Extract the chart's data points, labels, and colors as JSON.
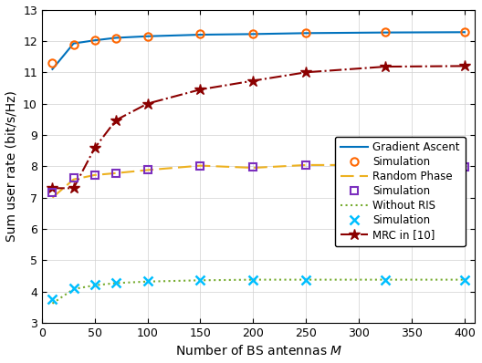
{
  "M_values": [
    10,
    30,
    50,
    70,
    100,
    150,
    200,
    250,
    325,
    400
  ],
  "gradient_ascent": [
    11.1,
    11.92,
    12.02,
    12.1,
    12.15,
    12.2,
    12.22,
    12.25,
    12.27,
    12.28
  ],
  "simulation_ga": [
    11.3,
    11.88,
    12.02,
    12.08,
    12.15,
    12.22,
    12.23,
    12.26,
    12.28,
    12.28
  ],
  "random_phase": [
    7.0,
    7.58,
    7.72,
    7.78,
    7.88,
    8.02,
    7.95,
    8.04,
    8.04,
    7.95
  ],
  "simulation_rp": [
    7.15,
    7.62,
    7.73,
    7.79,
    7.88,
    8.02,
    7.97,
    8.04,
    8.04,
    7.97
  ],
  "without_ris": [
    3.62,
    4.08,
    4.2,
    4.27,
    4.32,
    4.36,
    4.38,
    4.38,
    4.38,
    4.38
  ],
  "simulation_wr": [
    3.75,
    4.12,
    4.22,
    4.29,
    4.34,
    4.37,
    4.38,
    4.38,
    4.38,
    4.38
  ],
  "mrc": [
    7.3,
    7.3,
    8.58,
    9.47,
    10.0,
    10.45,
    10.73,
    11.0,
    11.18,
    11.2
  ],
  "ga_color": "#0072BD",
  "rp_color": "#EDB120",
  "wr_color": "#77AC30",
  "mrc_color": "#8B0000",
  "sim_ga_color": "#FF6600",
  "sim_rp_color": "#7B2FBE",
  "sim_wr_color": "#00BFFF",
  "xlabel": "Number of BS antennas $M$",
  "ylabel": "Sum user rate (bit/s/Hz)",
  "xlim": [
    0,
    410
  ],
  "ylim": [
    3,
    13
  ],
  "yticks": [
    3,
    4,
    5,
    6,
    7,
    8,
    9,
    10,
    11,
    12,
    13
  ],
  "xticks": [
    0,
    50,
    100,
    150,
    200,
    250,
    300,
    350,
    400
  ]
}
